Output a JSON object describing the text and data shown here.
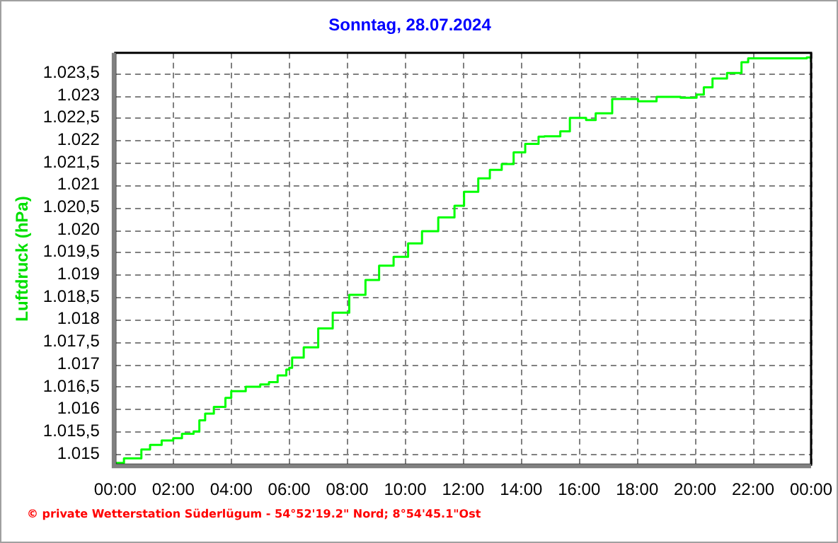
{
  "chart_data": {
    "type": "step",
    "title": "Sonntag, 28.07.2024",
    "ylabel": "Luftdruck (hPa)",
    "x": [
      0,
      0.3,
      0.9,
      1.2,
      1.6,
      2.0,
      2.3,
      2.7,
      2.9,
      3.1,
      3.4,
      3.8,
      4.0,
      4.5,
      5.0,
      5.3,
      5.6,
      5.9,
      6.0,
      6.1,
      6.5,
      7.0,
      7.5,
      8.07,
      8.63,
      9.1,
      9.6,
      10.1,
      10.58,
      11.14,
      11.7,
      12.03,
      12.52,
      12.92,
      13.33,
      13.74,
      14.14,
      14.6,
      14.8,
      15.35,
      15.68,
      16.24,
      16.57,
      17.14,
      18.03,
      18.67,
      19.5,
      20.05,
      20.3,
      20.6,
      21.1,
      21.6,
      21.83,
      22.9,
      23.85,
      24
    ],
    "series": [
      {
        "color": "#00ff00",
        "values": [
          1014.8,
          1014.9,
          1015.1,
          1015.2,
          1015.3,
          1015.35,
          1015.45,
          1015.5,
          1015.75,
          1015.9,
          1016.05,
          1016.25,
          1016.4,
          1016.5,
          1016.55,
          1016.6,
          1016.75,
          1016.88,
          1016.92,
          1017.15,
          1017.38,
          1017.8,
          1018.15,
          1018.55,
          1018.88,
          1019.2,
          1019.4,
          1019.7,
          1019.97,
          1020.28,
          1020.54,
          1020.85,
          1021.15,
          1021.34,
          1021.47,
          1021.73,
          1021.92,
          1022.08,
          1022.09,
          1022.2,
          1022.5,
          1022.45,
          1022.6,
          1022.92,
          1022.87,
          1022.97,
          1022.95,
          1023.02,
          1023.18,
          1023.38,
          1023.5,
          1023.74,
          1023.83,
          1023.83,
          1023.85,
          1023.74
        ]
      }
    ],
    "xlim": [
      0,
      24
    ],
    "xticks": [
      {
        "value": 0,
        "label": "00:00"
      },
      {
        "value": 2,
        "label": "02:00"
      },
      {
        "value": 4,
        "label": "04:00"
      },
      {
        "value": 6,
        "label": "06:00"
      },
      {
        "value": 8,
        "label": "08:00"
      },
      {
        "value": 10,
        "label": "10:00"
      },
      {
        "value": 12,
        "label": "12:00"
      },
      {
        "value": 14,
        "label": "14:00"
      },
      {
        "value": 16,
        "label": "16:00"
      },
      {
        "value": 18,
        "label": "18:00"
      },
      {
        "value": 20,
        "label": "20:00"
      },
      {
        "value": 22,
        "label": "22:00"
      },
      {
        "value": 24,
        "label": "00:00"
      }
    ],
    "ylim": [
      1014.76,
      1023.95
    ],
    "yticks": [
      {
        "value": 1015,
        "label": "1.015"
      },
      {
        "value": 1015.5,
        "label": "1.015,5"
      },
      {
        "value": 1016,
        "label": "1.016"
      },
      {
        "value": 1016.5,
        "label": "1.016,5"
      },
      {
        "value": 1017,
        "label": "1.017"
      },
      {
        "value": 1017.5,
        "label": "1.017,5"
      },
      {
        "value": 1018,
        "label": "1.018"
      },
      {
        "value": 1018.5,
        "label": "1.018,5"
      },
      {
        "value": 1019,
        "label": "1.019"
      },
      {
        "value": 1019.5,
        "label": "1.019,5"
      },
      {
        "value": 1020,
        "label": "1.020"
      },
      {
        "value": 1020.5,
        "label": "1.020,5"
      },
      {
        "value": 1021,
        "label": "1.021"
      },
      {
        "value": 1021.5,
        "label": "1.021,5"
      },
      {
        "value": 1022,
        "label": "1.022"
      },
      {
        "value": 1022.5,
        "label": "1.022,5"
      },
      {
        "value": 1023,
        "label": "1.023"
      },
      {
        "value": 1023.5,
        "label": "1.023,5"
      }
    ],
    "grid": true,
    "legend": false,
    "marker": "none",
    "line_style": "solid",
    "annotations": [
      "© private Wetterstation Süderlügum - 54°52'19.2\" Nord; 8°54'45.1\"Ost"
    ]
  }
}
